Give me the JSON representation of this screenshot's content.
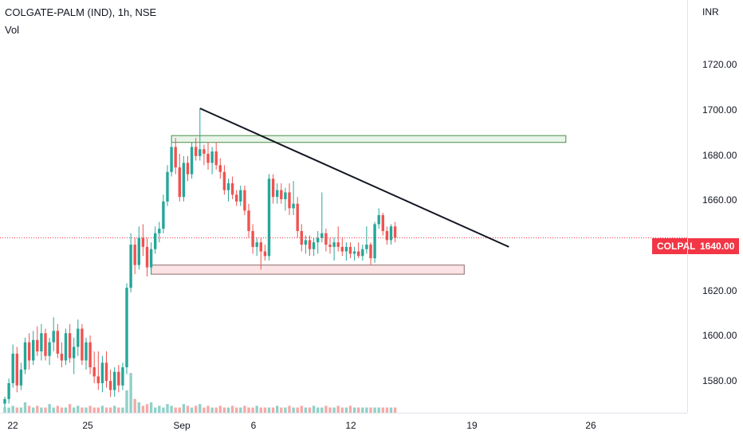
{
  "header": {
    "title": "COLGATE-PALM (IND), 1h, NSE",
    "volume_label": "Vol"
  },
  "price_axis": {
    "currency": "INR",
    "labels": [
      "1720.00",
      "1700.00",
      "1680.00",
      "1660.00",
      "1640.00",
      "1620.00",
      "1600.00",
      "1580.00"
    ]
  },
  "time_axis": {
    "labels": [
      "22",
      "25",
      "Sep",
      "6",
      "12",
      "19",
      "26"
    ]
  },
  "last_price": {
    "symbol": "COLPAL",
    "value": "1640.00"
  },
  "colors": {
    "up": "#26a69a",
    "down": "#ef5350",
    "volume_up": "#8fd1c9",
    "volume_down": "#f6a9a7",
    "resistance_zone": "#e8f5e9",
    "support_zone": "#fde4e4",
    "trendline": "#131722",
    "price_tag": "#f23645"
  },
  "chart_data": {
    "type": "candlestick",
    "title": "COLGATE-PALM (IND), 1h, NSE",
    "ylabel": "INR",
    "ylim": [
      1563,
      1744
    ],
    "grid": false,
    "last_price": 1640,
    "candles": [
      [
        1567,
        1570,
        1565,
        1569
      ],
      [
        1569,
        1578,
        1567,
        1576
      ],
      [
        1576,
        1593,
        1574,
        1589
      ],
      [
        1589,
        1592,
        1572,
        1575
      ],
      [
        1575,
        1585,
        1573,
        1582
      ],
      [
        1582,
        1596,
        1580,
        1594
      ],
      [
        1594,
        1598,
        1582,
        1586
      ],
      [
        1586,
        1599,
        1584,
        1595
      ],
      [
        1595,
        1601,
        1588,
        1590
      ],
      [
        1590,
        1602,
        1586,
        1598
      ],
      [
        1598,
        1600,
        1586,
        1588
      ],
      [
        1588,
        1596,
        1584,
        1594
      ],
      [
        1594,
        1605,
        1590,
        1599
      ],
      [
        1599,
        1602,
        1587,
        1589
      ],
      [
        1589,
        1594,
        1583,
        1586
      ],
      [
        1586,
        1600,
        1584,
        1598
      ],
      [
        1598,
        1602,
        1585,
        1587
      ],
      [
        1587,
        1596,
        1580,
        1592
      ],
      [
        1592,
        1604,
        1588,
        1600
      ],
      [
        1600,
        1602,
        1584,
        1586
      ],
      [
        1586,
        1596,
        1582,
        1594
      ],
      [
        1594,
        1597,
        1580,
        1583
      ],
      [
        1583,
        1590,
        1576,
        1579
      ],
      [
        1579,
        1590,
        1573,
        1576
      ],
      [
        1576,
        1588,
        1572,
        1585
      ],
      [
        1585,
        1590,
        1574,
        1577
      ],
      [
        1577,
        1582,
        1570,
        1573
      ],
      [
        1573,
        1583,
        1570,
        1581
      ],
      [
        1581,
        1584,
        1572,
        1575
      ],
      [
        1575,
        1585,
        1573,
        1583
      ],
      [
        1583,
        1620,
        1580,
        1618
      ],
      [
        1618,
        1642,
        1616,
        1637
      ],
      [
        1637,
        1640,
        1624,
        1628
      ],
      [
        1628,
        1645,
        1626,
        1640
      ],
      [
        1640,
        1646,
        1632,
        1636
      ],
      [
        1636,
        1640,
        1623,
        1627
      ],
      [
        1627,
        1638,
        1624,
        1635
      ],
      [
        1635,
        1645,
        1633,
        1642
      ],
      [
        1642,
        1647,
        1638,
        1644
      ],
      [
        1644,
        1659,
        1642,
        1656
      ],
      [
        1656,
        1672,
        1654,
        1669
      ],
      [
        1669,
        1684,
        1667,
        1680
      ],
      [
        1680,
        1684,
        1668,
        1671
      ],
      [
        1671,
        1677,
        1656,
        1658
      ],
      [
        1658,
        1676,
        1656,
        1673
      ],
      [
        1673,
        1676,
        1665,
        1668
      ],
      [
        1668,
        1682,
        1666,
        1680
      ],
      [
        1680,
        1684,
        1674,
        1676
      ],
      [
        1676,
        1697,
        1674,
        1679
      ],
      [
        1679,
        1681,
        1672,
        1677
      ],
      [
        1677,
        1682,
        1670,
        1673
      ],
      [
        1673,
        1680,
        1668,
        1678
      ],
      [
        1678,
        1682,
        1670,
        1672
      ],
      [
        1672,
        1675,
        1666,
        1669
      ],
      [
        1669,
        1672,
        1659,
        1661
      ],
      [
        1661,
        1666,
        1656,
        1664
      ],
      [
        1664,
        1667,
        1657,
        1659
      ],
      [
        1659,
        1661,
        1654,
        1656
      ],
      [
        1656,
        1663,
        1654,
        1661
      ],
      [
        1661,
        1663,
        1650,
        1652
      ],
      [
        1652,
        1655,
        1640,
        1643
      ],
      [
        1643,
        1646,
        1633,
        1636
      ],
      [
        1636,
        1640,
        1632,
        1638
      ],
      [
        1638,
        1640,
        1626,
        1634
      ],
      [
        1634,
        1637,
        1630,
        1632
      ],
      [
        1632,
        1668,
        1630,
        1666
      ],
      [
        1666,
        1668,
        1655,
        1658
      ],
      [
        1658,
        1664,
        1655,
        1661
      ],
      [
        1661,
        1664,
        1655,
        1657
      ],
      [
        1657,
        1662,
        1652,
        1660
      ],
      [
        1660,
        1664,
        1650,
        1653
      ],
      [
        1653,
        1665,
        1650,
        1655
      ],
      [
        1655,
        1658,
        1640,
        1643
      ],
      [
        1643,
        1646,
        1634,
        1637
      ],
      [
        1637,
        1641,
        1633,
        1639
      ],
      [
        1639,
        1641,
        1632,
        1635
      ],
      [
        1635,
        1640,
        1632,
        1638
      ],
      [
        1638,
        1643,
        1633,
        1640
      ],
      [
        1640,
        1660,
        1638,
        1642
      ],
      [
        1642,
        1644,
        1634,
        1637
      ],
      [
        1637,
        1640,
        1633,
        1636
      ],
      [
        1636,
        1640,
        1630,
        1638
      ],
      [
        1638,
        1645,
        1634,
        1636
      ],
      [
        1636,
        1640,
        1632,
        1634
      ],
      [
        1634,
        1638,
        1630,
        1636
      ],
      [
        1636,
        1638,
        1631,
        1633
      ],
      [
        1633,
        1636,
        1630,
        1634
      ],
      [
        1634,
        1638,
        1631,
        1632
      ],
      [
        1632,
        1637,
        1630,
        1635
      ],
      [
        1635,
        1645,
        1633,
        1637
      ],
      [
        1637,
        1638,
        1628,
        1631
      ],
      [
        1631,
        1647,
        1629,
        1646
      ],
      [
        1646,
        1653,
        1644,
        1650
      ],
      [
        1650,
        1651,
        1641,
        1643
      ],
      [
        1643,
        1645,
        1637,
        1639
      ],
      [
        1639,
        1646,
        1637,
        1645
      ],
      [
        1645,
        1647,
        1638,
        1640
      ]
    ],
    "volumes": [
      3,
      3,
      4,
      3,
      3,
      6,
      4,
      3,
      4,
      3,
      3,
      5,
      3,
      4,
      3,
      3,
      5,
      3,
      4,
      3,
      3,
      4,
      3,
      3,
      4,
      3,
      3,
      4,
      3,
      3,
      13,
      23,
      8,
      6,
      4,
      5,
      6,
      3,
      4,
      3,
      5,
      4,
      3,
      3,
      5,
      4,
      3,
      4,
      5,
      3,
      4,
      3,
      3,
      4,
      3,
      3,
      4,
      3,
      3,
      4,
      3,
      3,
      4,
      3,
      3,
      3,
      3,
      4,
      3,
      3,
      4,
      3,
      3,
      4,
      3,
      3,
      4,
      3,
      3,
      4,
      3,
      3,
      4,
      3,
      3,
      4,
      3,
      3,
      3,
      3,
      3,
      3,
      3,
      3,
      3,
      3,
      3
    ],
    "drawings": {
      "resistance_zone": [
        1682,
        1685
      ],
      "support_zone": [
        1624,
        1628
      ],
      "trendline": [
        [
          48,
          1697
        ],
        [
          124,
          1636
        ]
      ]
    }
  }
}
